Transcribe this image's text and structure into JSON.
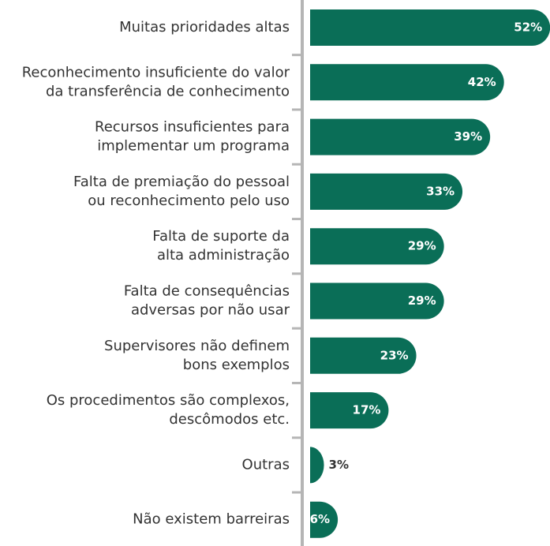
{
  "chart_data": {
    "type": "bar",
    "orientation": "horizontal",
    "color": "#0a6e57",
    "categories": [
      [
        "Muitas prioridades altas"
      ],
      [
        "Reconhecimento insuficiente do valor",
        "da transferência de conhecimento"
      ],
      [
        "Recursos insuficientes para",
        "implementar um programa"
      ],
      [
        "Falta de premiação do pessoal",
        "ou reconhecimento pelo uso"
      ],
      [
        "Falta de suporte da",
        "alta administração"
      ],
      [
        "Falta de consequências",
        "adversas por não usar"
      ],
      [
        "Supervisores não definem",
        "bons exemplos"
      ],
      [
        "Os procedimentos são complexos,",
        "descômodos etc."
      ],
      [
        "Outras"
      ],
      [
        "Não existem barreiras"
      ]
    ],
    "values": [
      52,
      42,
      39,
      33,
      29,
      29,
      23,
      17,
      3,
      6
    ],
    "value_labels": [
      "52%",
      "42%",
      "39%",
      "33%",
      "29%",
      "29%",
      "23%",
      "17%",
      "3%",
      "6%"
    ]
  }
}
